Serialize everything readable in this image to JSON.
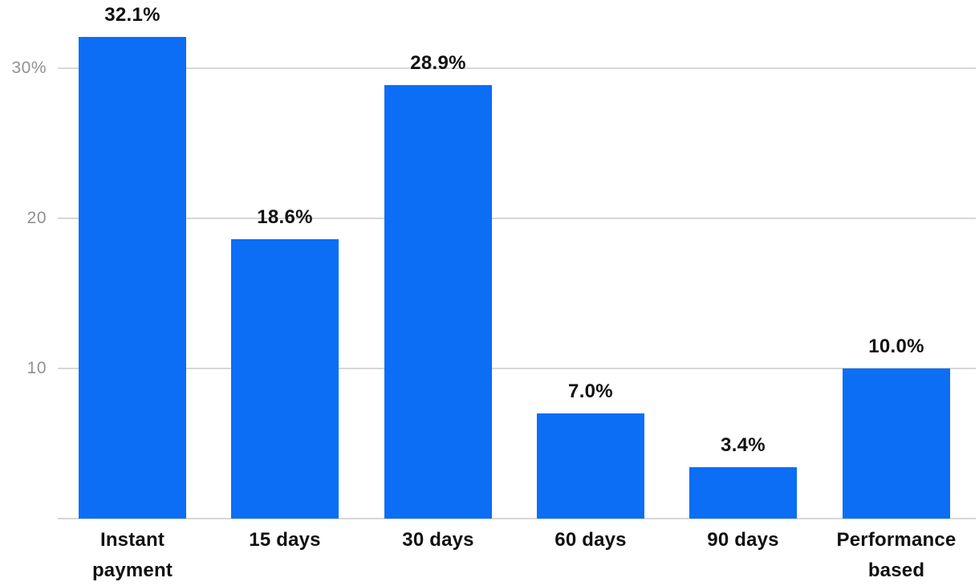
{
  "chart_data": {
    "type": "bar",
    "categories": [
      "Instant payment",
      "15 days",
      "30 days",
      "60 days",
      "90 days",
      "Performance based"
    ],
    "values": [
      32.1,
      18.6,
      28.9,
      7.0,
      3.4,
      10.0
    ],
    "value_labels": [
      "32.1%",
      "18.6%",
      "28.9%",
      "7.0%",
      "3.4%",
      "10.0%"
    ],
    "title": "",
    "xlabel": "",
    "ylabel": "",
    "ylim": [
      0,
      34.5
    ],
    "yticks": [
      {
        "value": 10,
        "label": "10"
      },
      {
        "value": 20,
        "label": "20"
      },
      {
        "value": 30,
        "label": "30%"
      }
    ],
    "grid": "horizontal",
    "legend": "none",
    "colors": {
      "bar": "#0b6ef5",
      "gridline": "#d7d7d7",
      "axis_line": "#d7d7d7",
      "tick_label": "#919191",
      "value_label": "#111111",
      "category_label": "#111111",
      "background": "#ffffff"
    }
  }
}
